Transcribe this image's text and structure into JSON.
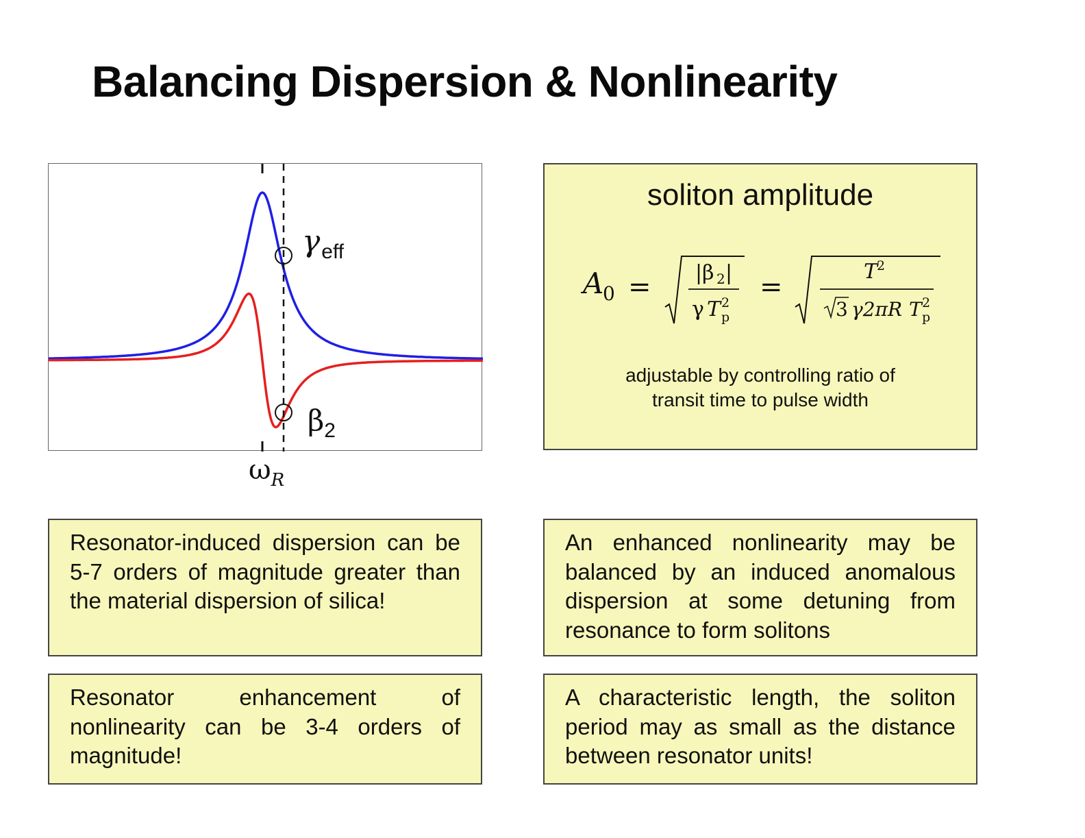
{
  "title": "Balancing Dispersion & Nonlinearity",
  "plot": {
    "gamma_symbol": "γ",
    "gamma_sub": "eff",
    "beta_symbol": "β",
    "beta_sub": "2",
    "omega_symbol": "ω",
    "omega_sub": "R",
    "colors": {
      "gamma_curve": "#1f1fe6",
      "beta_curve": "#e61f1f"
    }
  },
  "amplitude": {
    "title": "soliton amplitude",
    "formula": {
      "lhs": "A",
      "lhs_sub": "0",
      "eq": "=",
      "num1": "|β",
      "num1_sub": "2",
      "num1_end": "|",
      "den1_gamma": "γ",
      "den1_T": "T",
      "den1_sup": "2",
      "den1_sub": "p",
      "num2": "T",
      "num2_sup": "2",
      "den2_root3": "3",
      "den2_rest": "γ2πR",
      "den2_T": "T",
      "den2_sup": "2",
      "den2_sub": "p"
    },
    "caption_line1": "adjustable by controlling ratio of",
    "caption_line2": "transit time to pulse width"
  },
  "boxes": {
    "dispersion": "Resonator-induced dispersion can be 5-7 orders of magnitude greater than the material dispersion of silica!",
    "balance": "An enhanced nonlinearity may be balanced by an induced anomalous dispersion at some detuning from resonance to form solitons",
    "nonlinearity": "Resonator enhancement of nonlinearity can be 3-4 orders of magnitude!",
    "length": "A characteristic length, the soliton period may as small as the distance between resonator units!"
  }
}
